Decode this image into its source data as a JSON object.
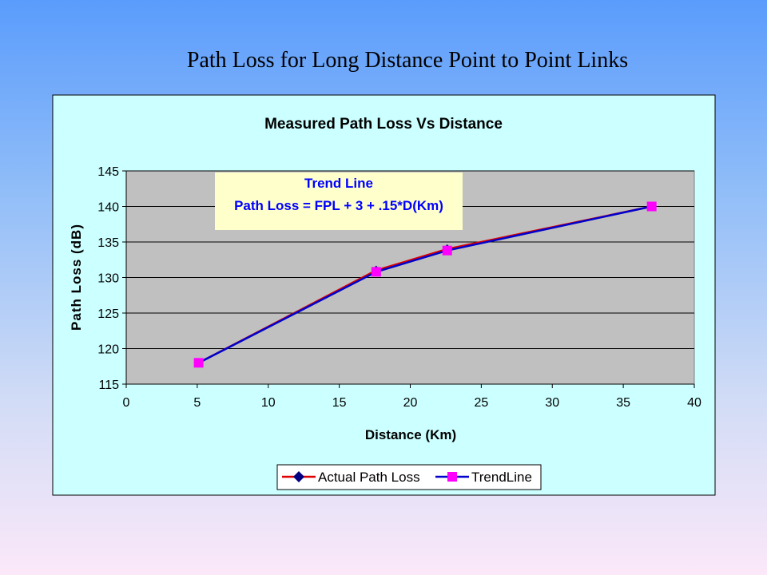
{
  "slide": {
    "title": "Path Loss for Long Distance Point to Point Links"
  },
  "colors": {
    "chart_background": "#ccffff",
    "plot_background": "#c0c0c0",
    "annotation_background": "#ffffcc",
    "annotation_text": "#0000ff",
    "actual_line": "#dd0000",
    "actual_marker": "#000080",
    "trend_line": "#0000cc",
    "trend_marker": "#ff00ff"
  },
  "chart_data": {
    "type": "line",
    "title": "Measured Path Loss Vs Distance",
    "xlabel": "Distance (Km)",
    "ylabel": "Path Loss (dB)",
    "xlim": [
      0,
      40
    ],
    "ylim": [
      115,
      145
    ],
    "xticks": [
      0,
      5,
      10,
      15,
      20,
      25,
      30,
      35,
      40
    ],
    "yticks": [
      115,
      120,
      125,
      130,
      135,
      140,
      145
    ],
    "grid": "horizontal",
    "legend": "bottom",
    "series": [
      {
        "name": "Actual Path Loss",
        "x": [
          5.1,
          17.6,
          22.6,
          37
        ],
        "y": [
          118,
          131,
          134,
          140
        ]
      },
      {
        "name": "TrendLine",
        "x": [
          5.1,
          17.6,
          22.6,
          37
        ],
        "y": [
          118,
          130.8,
          133.8,
          140
        ]
      }
    ],
    "annotation": {
      "line1": "Trend Line",
      "line2": "Path Loss = FPL + 3 + .15*D(Km)"
    }
  }
}
